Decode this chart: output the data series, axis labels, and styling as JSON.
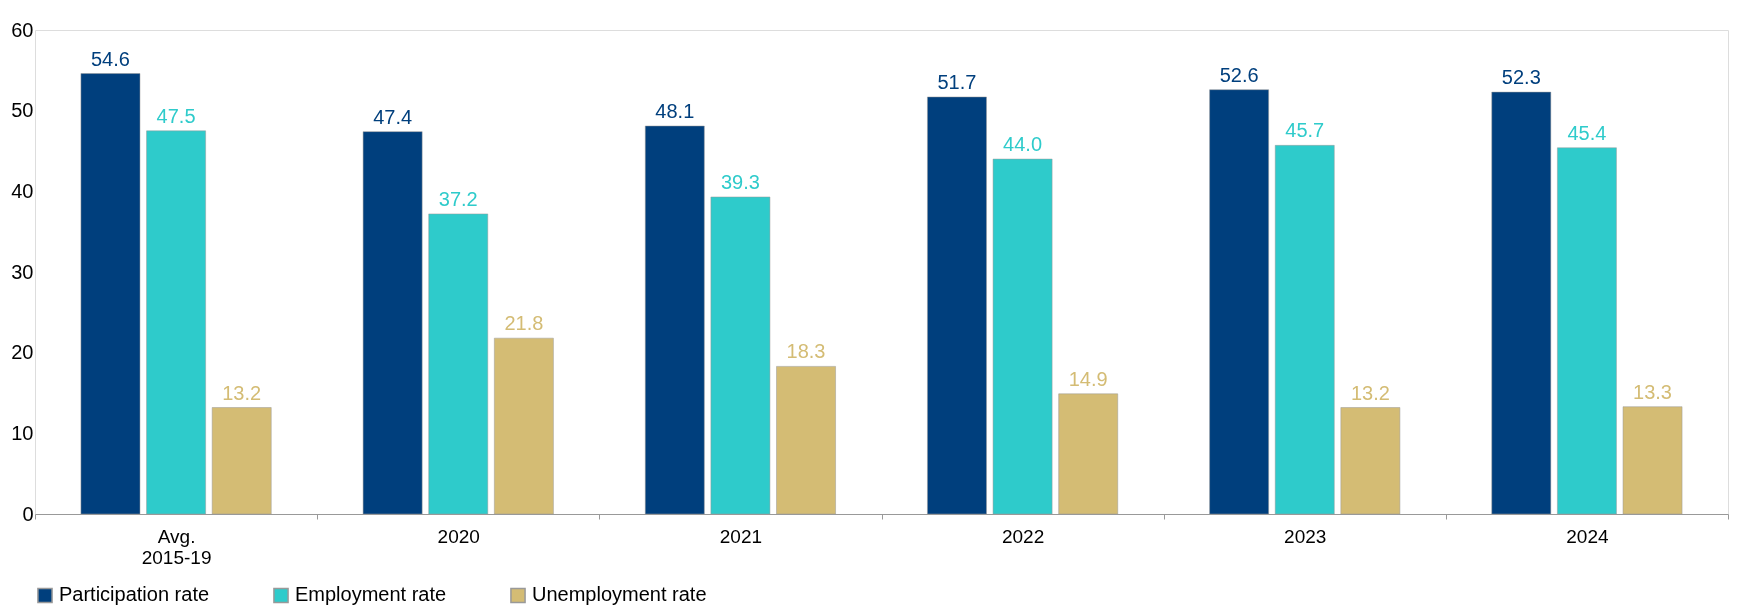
{
  "chart_data": {
    "type": "bar",
    "categories": [
      "Avg. 2015-19",
      "2020",
      "2021",
      "2022",
      "2023",
      "2024"
    ],
    "series": [
      {
        "name": "Participation rate",
        "color": "#003f7d",
        "values": [
          54.6,
          47.4,
          48.1,
          51.7,
          52.6,
          52.3
        ],
        "value_labels": [
          "54.6",
          "47.4",
          "48.1",
          "51.7",
          "52.6",
          "52.3"
        ]
      },
      {
        "name": "Employment rate",
        "color": "#2ecbcb",
        "values": [
          47.5,
          37.2,
          39.3,
          44.0,
          45.7,
          45.4
        ],
        "value_labels": [
          "47.5",
          "37.2",
          "39.3",
          "44.0",
          "45.7",
          "45.4"
        ]
      },
      {
        "name": "Unemployment rate",
        "color": "#d4bc74",
        "values": [
          13.2,
          21.8,
          18.3,
          14.9,
          13.2,
          13.3
        ],
        "value_labels": [
          "13.2",
          "21.8",
          "18.3",
          "14.9",
          "13.2",
          "13.3"
        ]
      }
    ],
    "ylim": [
      0,
      60
    ],
    "yticks": [
      0,
      10,
      20,
      30,
      40,
      50,
      60
    ],
    "legend": "bottom left",
    "grid": false
  }
}
